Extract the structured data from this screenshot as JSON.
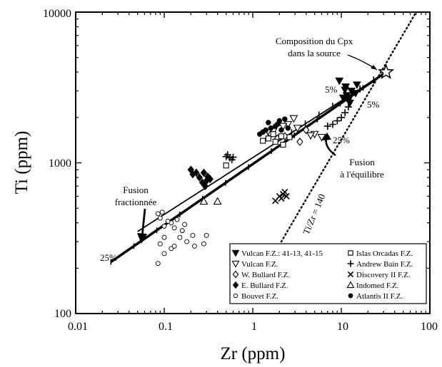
{
  "chart_data": {
    "type": "scatter",
    "xscale": "log",
    "yscale": "log",
    "xlim": [
      0.01,
      100
    ],
    "ylim": [
      100,
      10000
    ],
    "xlabel": "Zr (ppm)",
    "ylabel": "Ti (ppm)",
    "x_ticks": [
      "0.01",
      "0.1",
      "1",
      "10",
      "100"
    ],
    "y_ticks": [
      "100",
      "1000",
      "10000"
    ],
    "lines": [
      {
        "kind": "fractional",
        "points": [
          [
            0.025,
            220
          ],
          [
            32,
            4000
          ]
        ],
        "width": 3.5
      },
      {
        "kind": "equilibrium",
        "points": [
          [
            0.05,
            350
          ],
          [
            32,
            4000
          ]
        ],
        "width": 1.8
      },
      {
        "kind": "ratio",
        "points": [
          [
            2.1,
            300
          ],
          [
            70,
            10000
          ]
        ],
        "dotted": true
      }
    ],
    "source_point": [
      32,
      4000
    ],
    "annotations": [
      {
        "id": "cpx",
        "text_lines": [
          "Composition du Cpx",
          "dans la source"
        ]
      },
      {
        "id": "pct5a",
        "text": "5%"
      },
      {
        "id": "pct5b",
        "text": "5%"
      },
      {
        "id": "pct25a",
        "text": "25%"
      },
      {
        "id": "pct25b",
        "text": "25%"
      },
      {
        "id": "fusion_eq",
        "text_lines": [
          "Fusion",
          "à l'équilibre"
        ]
      },
      {
        "id": "fusion_fr",
        "text_lines": [
          "Fusion",
          "fractionnée"
        ]
      },
      {
        "id": "ratio",
        "text": "Ti/Zr = 140"
      }
    ],
    "legend": [
      {
        "label": "Vulcan F.Z.: 41-13, 41-15",
        "marker": "tri-down-filled"
      },
      {
        "label": "Vulcan F.Z.",
        "marker": "tri-down-open"
      },
      {
        "label": "W. Bullard F.Z.",
        "marker": "diamond-open"
      },
      {
        "label": "E. Bullard F.Z.",
        "marker": "diamond-filled"
      },
      {
        "label": "Bouvet F.Z.",
        "marker": "circle-open-small"
      },
      {
        "label": "Islas Orcadas F.Z.",
        "marker": "square-open"
      },
      {
        "label": "Andrew Bain F.Z.",
        "marker": "plus"
      },
      {
        "label": "Discovery II F.Z.",
        "marker": "cross"
      },
      {
        "label": "Indomed F.Z.",
        "marker": "tri-up-open"
      },
      {
        "label": "Atlantis II F.Z.",
        "marker": "circle-filled"
      }
    ],
    "series": [
      {
        "name": "Vulcan F.Z.: 41-13, 41-15",
        "marker": "tri-down-filled",
        "points": [
          [
            10.5,
            2700
          ],
          [
            11,
            3050
          ],
          [
            12,
            2600
          ],
          [
            13,
            3000
          ],
          [
            14.5,
            2900
          ],
          [
            12.5,
            2500
          ],
          [
            11.5,
            2800
          ],
          [
            15,
            3300
          ],
          [
            9.5,
            3500
          ],
          [
            11.2,
            3200
          ]
        ]
      },
      {
        "name": "Vulcan F.Z.",
        "marker": "tri-down-open",
        "points": [
          [
            2.9,
            1970
          ],
          [
            2.5,
            1800
          ],
          [
            1.7,
            1620
          ],
          [
            3.2,
            1700
          ],
          [
            5,
            1550
          ],
          [
            4.5,
            1520
          ],
          [
            6,
            1480
          ],
          [
            2.2,
            1750
          ],
          [
            1.5,
            1600
          ]
        ]
      },
      {
        "name": "W. Bullard F.Z.",
        "marker": "diamond-open",
        "points": [
          [
            3.4,
            1380
          ],
          [
            1.9,
            1450
          ],
          [
            1.6,
            1550
          ],
          [
            2.3,
            1500
          ],
          [
            4,
            1650
          ]
        ]
      },
      {
        "name": "E. Bullard F.Z.",
        "marker": "diamond-filled",
        "points": [
          [
            0.2,
            900
          ],
          [
            0.21,
            840
          ],
          [
            0.23,
            860
          ],
          [
            0.25,
            800
          ],
          [
            0.27,
            740
          ],
          [
            0.29,
            700
          ],
          [
            0.3,
            760
          ],
          [
            0.33,
            780
          ],
          [
            0.28,
            860
          ],
          [
            0.31,
            810
          ]
        ]
      },
      {
        "name": "Bouvet F.Z.",
        "marker": "circle-open-small",
        "points": [
          [
            0.085,
            215
          ],
          [
            0.09,
            290
          ],
          [
            0.1,
            320
          ],
          [
            0.12,
            270
          ],
          [
            0.13,
            280
          ],
          [
            0.15,
            320
          ],
          [
            0.18,
            300
          ],
          [
            0.22,
            280
          ],
          [
            0.28,
            290
          ],
          [
            0.3,
            330
          ],
          [
            0.12,
            400
          ],
          [
            0.14,
            420
          ],
          [
            0.17,
            390
          ],
          [
            0.21,
            330
          ],
          [
            0.1,
            250
          ],
          [
            0.085,
            460
          ],
          [
            0.09,
            430
          ],
          [
            0.1,
            380
          ],
          [
            0.11,
            410
          ],
          [
            0.13,
            370
          ],
          [
            0.16,
            355
          ],
          [
            0.095,
            470
          ]
        ]
      },
      {
        "name": "Islas Orcadas F.Z.",
        "marker": "square-open",
        "points": [
          [
            0.5,
            960
          ],
          [
            1.5,
            1450
          ],
          [
            1.8,
            1380
          ],
          [
            2.2,
            1320
          ],
          [
            2.6,
            1480
          ],
          [
            1.7,
            1550
          ],
          [
            2.1,
            1500
          ],
          [
            1.3,
            1400
          ]
        ]
      },
      {
        "name": "Andrew Bain F.Z.",
        "marker": "plus",
        "points": [
          [
            0.5,
            1100
          ],
          [
            0.55,
            1080
          ],
          [
            0.6,
            1090
          ],
          [
            0.52,
            1130
          ],
          [
            0.58,
            1050
          ],
          [
            7,
            1750
          ],
          [
            8,
            1800
          ],
          [
            9,
            1900
          ],
          [
            10,
            2000
          ],
          [
            11,
            2150
          ],
          [
            12,
            2350
          ]
        ]
      },
      {
        "name": "Discovery II F.Z.",
        "marker": "cross",
        "points": [
          [
            1.8,
            560
          ],
          [
            2,
            600
          ],
          [
            2.2,
            620
          ],
          [
            2.4,
            600
          ],
          [
            2.1,
            580
          ],
          [
            2.3,
            640
          ]
        ]
      },
      {
        "name": "Indomed F.Z.",
        "marker": "tri-up-open",
        "points": [
          [
            0.28,
            555
          ],
          [
            0.4,
            555
          ]
        ]
      },
      {
        "name": "Atlantis II F.Z.",
        "marker": "circle-filled",
        "points": [
          [
            1.2,
            1550
          ],
          [
            1.4,
            1650
          ],
          [
            1.6,
            1700
          ],
          [
            1.8,
            1750
          ],
          [
            2,
            1900
          ],
          [
            2.3,
            1950
          ],
          [
            1.5,
            1850
          ],
          [
            1.3,
            1600
          ],
          [
            2.5,
            1700
          ],
          [
            1.9,
            1800
          ],
          [
            2.1,
            1650
          ]
        ]
      }
    ]
  }
}
